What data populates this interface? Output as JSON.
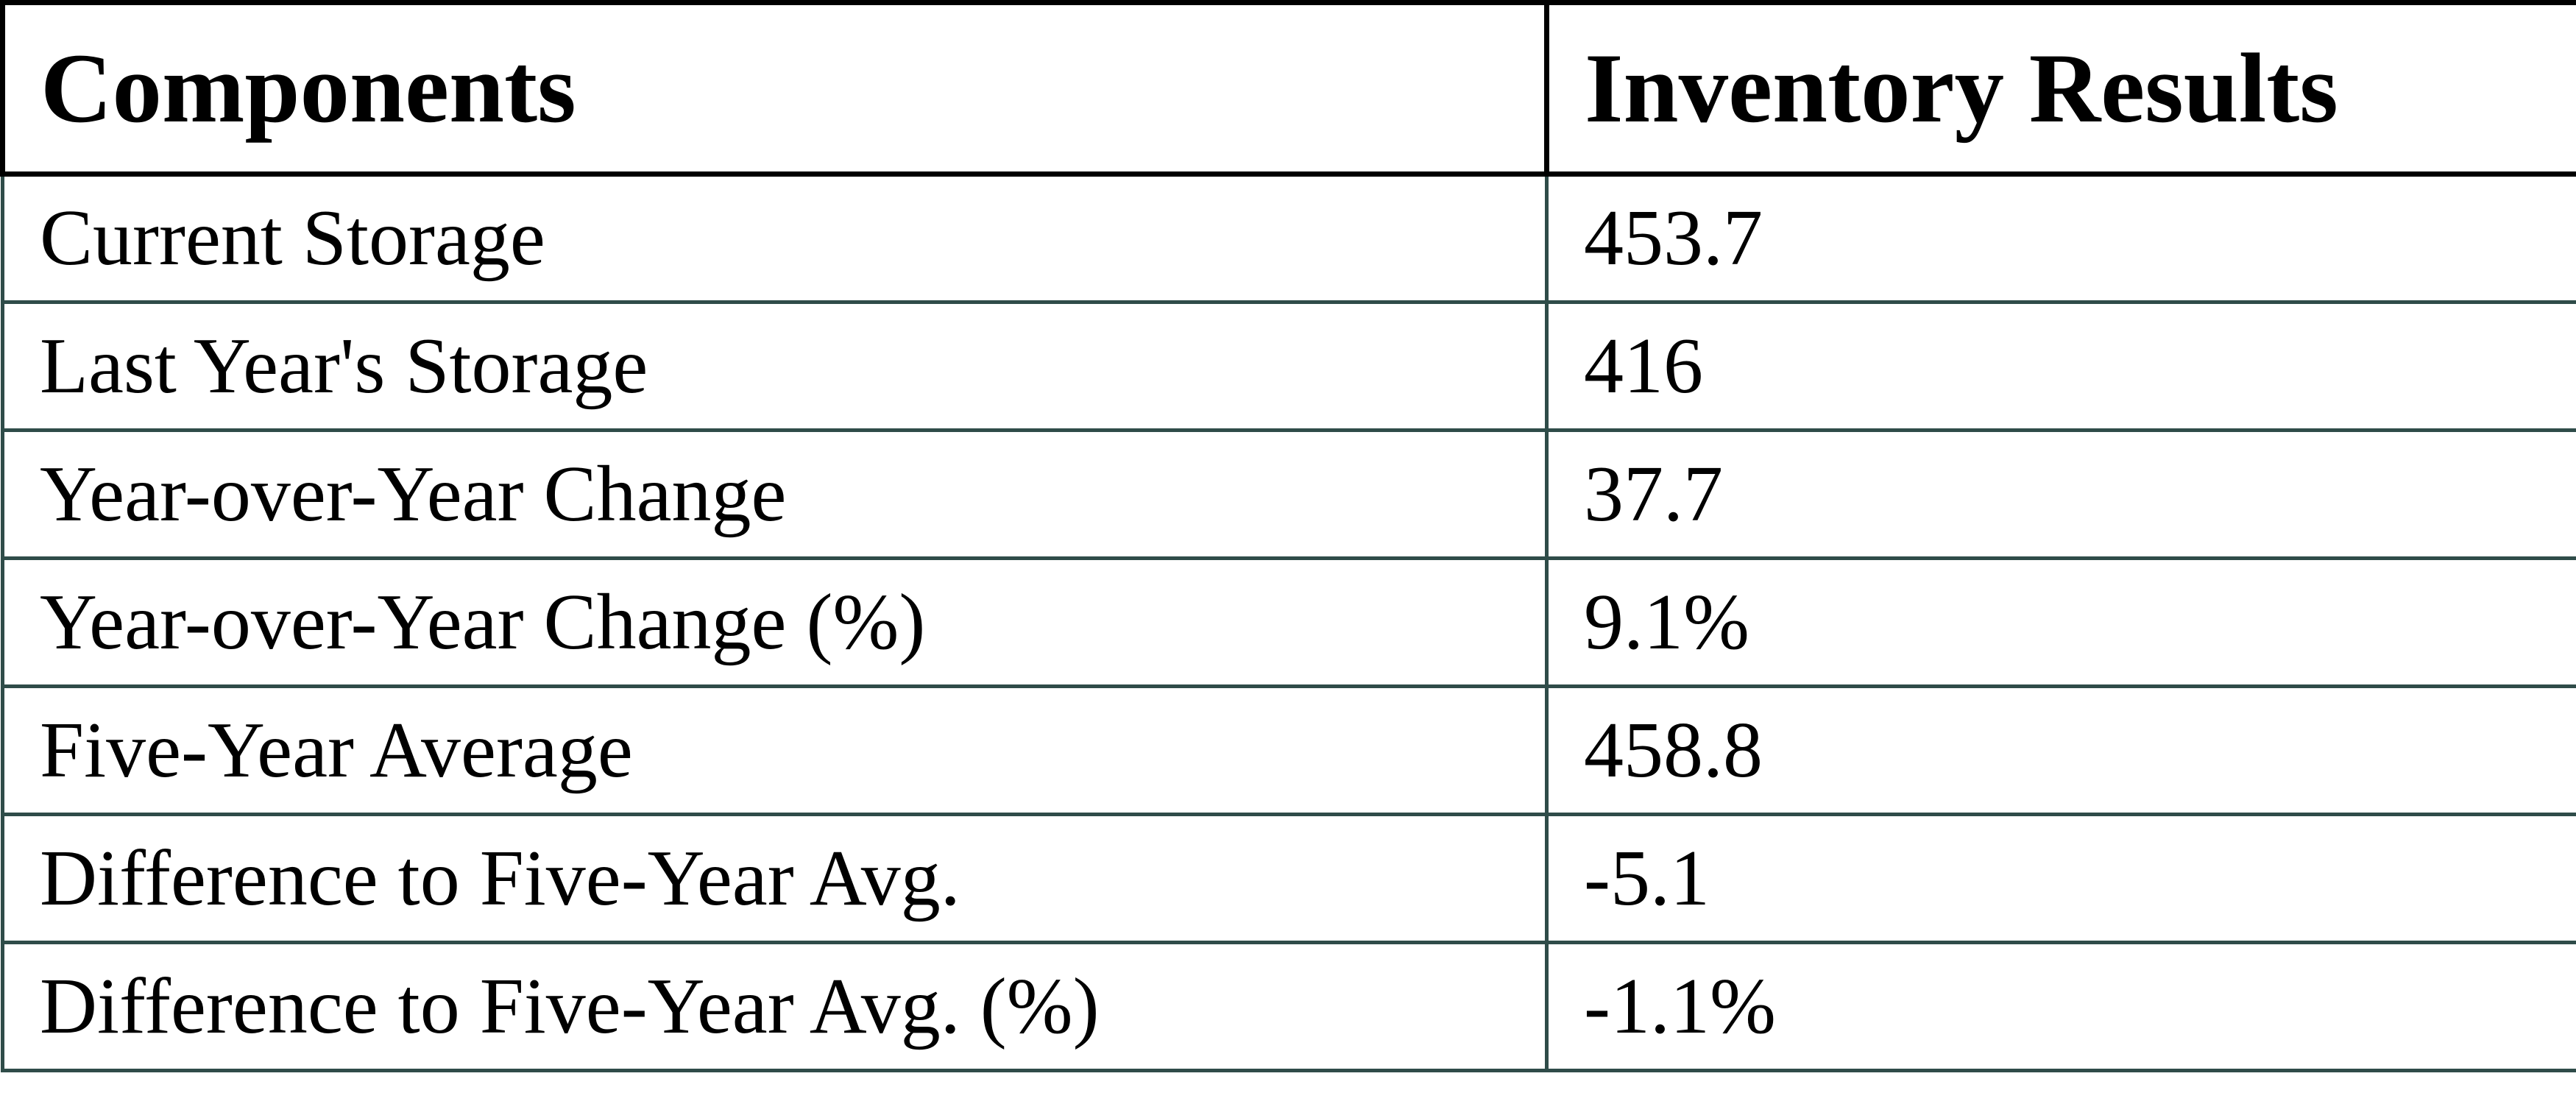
{
  "table": {
    "columns": [
      {
        "label": "Components"
      },
      {
        "label": "Inventory Results"
      }
    ],
    "rows": [
      {
        "label": "Current Storage",
        "value": "453.7"
      },
      {
        "label": "Last Year's Storage",
        "value": "416"
      },
      {
        "label": "Year-over-Year Change",
        "value": "37.7"
      },
      {
        "label": "Year-over-Year Change (%)",
        "value": "9.1%"
      },
      {
        "label": "Five-Year Average",
        "value": "458.8"
      },
      {
        "label": "Difference to Five-Year Avg.",
        "value": "-5.1"
      },
      {
        "label": "Difference to Five-Year Avg. (%)",
        "value": "-1.1%"
      }
    ],
    "colors": {
      "header_border": "#000000",
      "body_border": "#2F4C49",
      "text": "#000000",
      "background": "#FFFFFF"
    }
  }
}
